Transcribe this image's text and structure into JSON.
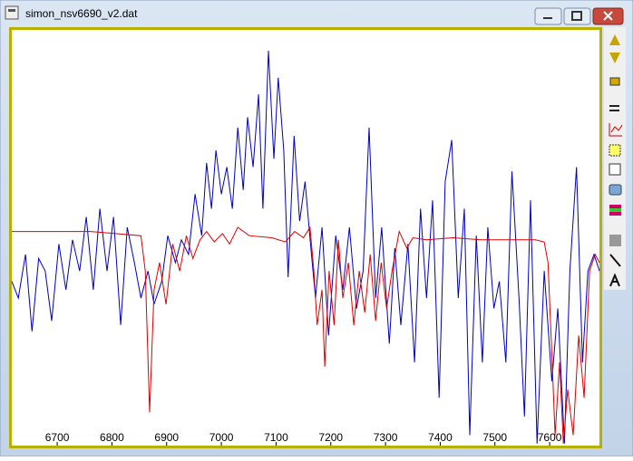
{
  "window": {
    "title": "simon_nsv6690_v2.dat"
  },
  "chart_data": {
    "type": "line",
    "xlim": [
      6617,
      7691
    ],
    "xticks": [
      6700,
      6800,
      6900,
      7000,
      7100,
      7200,
      7300,
      7400,
      7500,
      7600
    ],
    "ylim": [
      0,
      2
    ],
    "grid": false,
    "series": [
      {
        "color": "#0000c0",
        "x": [
          6617,
          6629,
          6642,
          6654,
          6666,
          6678,
          6690,
          6703,
          6716,
          6728,
          6741,
          6753,
          6766,
          6778,
          6791,
          6803,
          6816,
          6828,
          6841,
          6853,
          6866,
          6877,
          6891,
          6902,
          6916,
          6927,
          6940,
          6952,
          6964,
          6973,
          6982,
          6990,
          7000,
          7010,
          7020,
          7030,
          7040,
          7048,
          7058,
          7068,
          7076,
          7086,
          7096,
          7104,
          7114,
          7122,
          7133,
          7143,
          7153,
          7163,
          7172,
          7184,
          7196,
          7209,
          7222,
          7234,
          7247,
          7259,
          7270,
          7282,
          7293,
          7307,
          7317,
          7328,
          7341,
          7353,
          7364,
          7375,
          7386,
          7398,
          7409,
          7421,
          7433,
          7444,
          7454,
          7466,
          7477,
          7487,
          7498,
          7508,
          7520,
          7531,
          7544,
          7554,
          7565,
          7577,
          7590,
          7604,
          7615,
          7627,
          7637,
          7649,
          7660,
          7670,
          7681,
          7691
        ],
        "values": [
          0.79,
          0.71,
          0.92,
          0.55,
          0.9,
          0.84,
          0.6,
          0.97,
          0.75,
          0.99,
          0.84,
          1.1,
          0.75,
          1.14,
          0.84,
          1.1,
          0.58,
          1.05,
          0.88,
          0.71,
          0.84,
          0.68,
          0.79,
          1.01,
          0.88,
          0.99,
          0.92,
          1.21,
          1.01,
          1.36,
          1.14,
          1.42,
          1.21,
          1.34,
          1.14,
          1.53,
          1.23,
          1.58,
          1.34,
          1.69,
          1.14,
          1.9,
          1.38,
          1.77,
          1.42,
          0.81,
          1.49,
          1.08,
          1.27,
          0.97,
          0.71,
          1.05,
          0.53,
          1.01,
          0.75,
          1.05,
          0.66,
          0.84,
          1.53,
          0.71,
          1.05,
          0.49,
          0.95,
          0.58,
          0.97,
          0.4,
          1.14,
          0.71,
          1.18,
          0.23,
          1.27,
          1.47,
          0.71,
          1.14,
          0.05,
          1.01,
          0.4,
          1.05,
          0.66,
          0.79,
          0.4,
          1.32,
          0.71,
          0.14,
          1.18,
          0.01,
          0.84,
          0.31,
          0.66,
          0.01,
          0.84,
          1.34,
          0.4,
          0.84,
          0.92,
          0.84
        ]
      },
      {
        "color": "#e00000",
        "x": [
          6617,
          6695,
          6761,
          6853,
          6861,
          6869,
          6877,
          6887,
          6899,
          6911,
          6924,
          6936,
          6948,
          6961,
          6973,
          6987,
          7002,
          7015,
          7030,
          7051,
          7092,
          7117,
          7134,
          7150,
          7162,
          7169,
          7175,
          7184,
          7189,
          7197,
          7206,
          7214,
          7222,
          7232,
          7242,
          7252,
          7262,
          7272,
          7282,
          7292,
          7302,
          7312,
          7325,
          7339,
          7350,
          7375,
          7424,
          7474,
          7524,
          7574,
          7590,
          7597,
          7604,
          7610,
          7618,
          7625,
          7633,
          7643,
          7653,
          7663,
          7673,
          7683,
          7691
        ],
        "values": [
          1.03,
          1.03,
          1.03,
          1.01,
          0.84,
          0.16,
          0.75,
          0.88,
          0.68,
          0.97,
          0.84,
          1.01,
          0.9,
          0.99,
          1.03,
          0.98,
          1.02,
          0.97,
          1.05,
          1.01,
          1.0,
          0.98,
          1.03,
          1.0,
          1.05,
          0.84,
          0.58,
          0.75,
          0.38,
          0.84,
          0.58,
          0.99,
          0.71,
          0.88,
          0.58,
          0.84,
          0.64,
          0.92,
          0.6,
          0.88,
          0.66,
          0.84,
          1.03,
          0.95,
          1.0,
          0.99,
          1.0,
          0.99,
          0.99,
          0.99,
          0.98,
          0.88,
          0.44,
          0.05,
          0.4,
          0.01,
          0.27,
          0.05,
          0.53,
          0.23,
          0.84,
          0.92,
          0.88
        ]
      }
    ]
  }
}
